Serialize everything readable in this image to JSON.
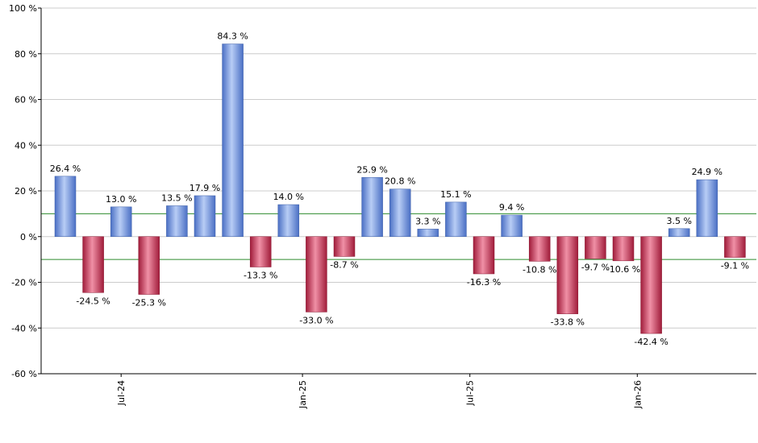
{
  "chart_data": {
    "type": "bar",
    "title": "",
    "xlabel": "",
    "ylabel": "",
    "ylim": [
      -60,
      100
    ],
    "y_ticks": [
      100,
      80,
      60,
      40,
      20,
      0,
      -20,
      -40,
      -60
    ],
    "y_tick_labels": [
      "100 %",
      "80 %",
      "60 %",
      "40 %",
      "20 %",
      "0 %",
      "-20 %",
      "-40 %",
      "-60 %"
    ],
    "x_tick_labels": [
      {
        "label": "Jul-24",
        "index": 2
      },
      {
        "label": "Jan-25",
        "index": 8.5
      },
      {
        "label": "Jul-25",
        "index": 14.5
      },
      {
        "label": "Jan-26",
        "index": 20.5
      }
    ],
    "reference_lines": [
      10,
      -10
    ],
    "grid": true,
    "legend": false,
    "colors": {
      "positive": "#7a9ee6",
      "negative": "#c8304e",
      "reference": "#2e8b2e",
      "grid": "#cccccc"
    },
    "values": [
      26.4,
      -24.5,
      13.0,
      -25.3,
      13.5,
      17.9,
      84.3,
      -13.3,
      14.0,
      -33.0,
      -8.7,
      25.9,
      20.8,
      3.3,
      15.1,
      -16.3,
      9.4,
      -10.8,
      -33.8,
      -9.7,
      -10.6,
      -42.4,
      3.5,
      24.9,
      -9.1
    ],
    "labels": [
      "26.4 %",
      "-24.5 %",
      "13.0 %",
      "-25.3 %",
      "13.5 %",
      "17.9 %",
      "84.3 %",
      "-13.3 %",
      "14.0 %",
      "-33.0 %",
      "-8.7 %",
      "25.9 %",
      "20.8 %",
      "3.3 %",
      "15.1 %",
      "-16.3 %",
      "9.4 %",
      "-10.8 %",
      "-33.8 %",
      "-9.7 %",
      "-10.6 %",
      "-42.4 %",
      "3.5 %",
      "24.9 %",
      "-9.1 %"
    ]
  }
}
